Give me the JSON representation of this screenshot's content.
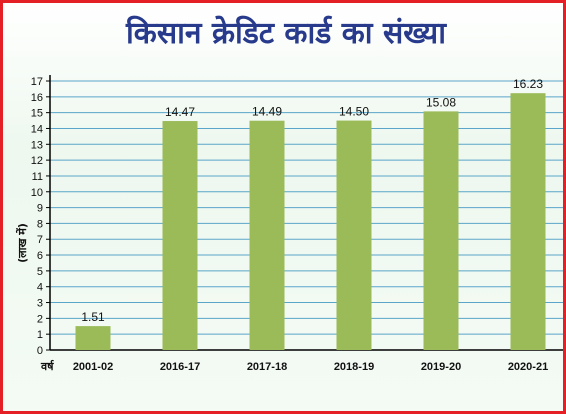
{
  "colors": {
    "border": "#e41f26",
    "title": "#283a8c",
    "bar": "#9bbb59",
    "grid": "#5aa5c9"
  },
  "chart_data": {
    "type": "bar",
    "title": "किसान क्रेडिट कार्ड का संख्या",
    "xlabel": "वर्ष",
    "ylabel": "(लाख में)",
    "categories": [
      "2001-02",
      "2016-17",
      "2017-18",
      "2018-19",
      "2019-20",
      "2020-21"
    ],
    "values": [
      1.51,
      14.47,
      14.49,
      14.5,
      15.08,
      16.23
    ],
    "data_labels": [
      "1.51",
      "14.47",
      "14.49",
      "14.50",
      "15.08",
      "16.23"
    ],
    "ylim": [
      0,
      17
    ],
    "yticks": [
      0,
      1,
      2,
      3,
      4,
      5,
      6,
      7,
      8,
      9,
      10,
      11,
      12,
      13,
      14,
      15,
      16,
      17
    ],
    "grid": true
  }
}
